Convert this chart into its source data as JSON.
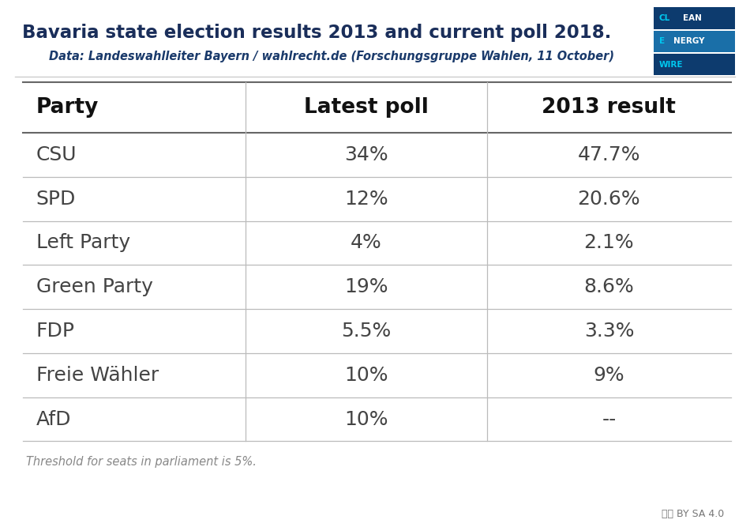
{
  "title": "Bavaria state election results 2013 and current poll 2018.",
  "subtitle": "Data: Landeswahlleiter Bayern / wahlrecht.de (Forschungsgruppe Wahlen, 11 October)",
  "title_color": "#1a2e5a",
  "subtitle_color": "#1a3a6b",
  "background_color": "#ffffff",
  "col_headers": [
    "Party",
    "Latest poll",
    "2013 result"
  ],
  "rows": [
    [
      "CSU",
      "34%",
      "47.7%"
    ],
    [
      "SPD",
      "12%",
      "20.6%"
    ],
    [
      "Left Party",
      "4%",
      "2.1%"
    ],
    [
      "Green Party",
      "19%",
      "8.6%"
    ],
    [
      "FDP",
      "5.5%",
      "3.3%"
    ],
    [
      "Freie Wähler",
      "10%",
      "9%"
    ],
    [
      "AfD",
      "10%",
      "--"
    ]
  ],
  "footer": "Threshold for seats in parliament is 5%.",
  "footer_color": "#888888",
  "table_text_color": "#444444",
  "header_text_color": "#111111",
  "line_color": "#bbbbbb",
  "header_line_color": "#666666",
  "logo_colors": {
    "bg1": "#0d3b6e",
    "bg2": "#1a6fa8",
    "text_white": "#ffffff",
    "text_cyan": "#00c8f0"
  }
}
